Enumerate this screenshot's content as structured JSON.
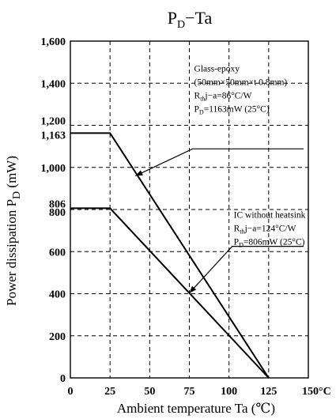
{
  "chart_data": {
    "type": "line",
    "title": {
      "main": "P",
      "subscript": "D",
      "rest": "−Ta"
    },
    "xlabel": "Ambient temperature  Ta  (℃)",
    "ylabel": {
      "main": "Power dissipation  P",
      "subscript": "D",
      "rest": "  (mW)"
    },
    "xlim": [
      0,
      150
    ],
    "ylim": [
      0,
      1600
    ],
    "grid": true,
    "grid_style": "dashed",
    "x_ticks": [
      {
        "value": 0,
        "label": "0"
      },
      {
        "value": 25,
        "label": "25"
      },
      {
        "value": 50,
        "label": "50"
      },
      {
        "value": 75,
        "label": "75"
      },
      {
        "value": 100,
        "label": "100"
      },
      {
        "value": 125,
        "label": "125"
      },
      {
        "value": 150,
        "label": "150°C"
      }
    ],
    "y_ticks": [
      {
        "value": 0,
        "label": "0"
      },
      {
        "value": 200,
        "label": "200"
      },
      {
        "value": 400,
        "label": "400"
      },
      {
        "value": 600,
        "label": "600"
      },
      {
        "value": 800,
        "label": "800"
      },
      {
        "value": 806,
        "label": "806"
      },
      {
        "value": 1000,
        "label": "1,000"
      },
      {
        "value": 1163,
        "label": "1,163"
      },
      {
        "value": 1200,
        "label": "1,200"
      },
      {
        "value": 1400,
        "label": "1,400"
      },
      {
        "value": 1600,
        "label": "1,600"
      }
    ],
    "series": [
      {
        "x": [
          0,
          25,
          125
        ],
        "y": [
          1163,
          1163,
          0
        ]
      },
      {
        "x": [
          0,
          25,
          125
        ],
        "y": [
          806,
          806,
          0
        ]
      }
    ],
    "annotations": [
      {
        "lines": [
          {
            "text": "Glass-epoxy"
          },
          {
            "text": "(50mm×50mm×t 0.8mm)"
          },
          {
            "main": "R",
            "subscript": "th",
            "rest": "j−a=86°C/W"
          },
          {
            "main": "P",
            "subscript": "D",
            "rest": "=1163mW  (25°C)"
          }
        ],
        "text_at": [
          78,
          1455
        ],
        "underline_to_x": 147,
        "underline_y": 1088,
        "arrow_target": [
          41,
          960
        ]
      },
      {
        "lines": [
          {
            "text": "IC without heatsink"
          },
          {
            "main": "R",
            "subscript": "th",
            "rest": "j−a=124°C/W"
          },
          {
            "main": "P",
            "subscript": "D",
            "rest": "=806mW  (25°C)"
          }
        ],
        "text_at": [
          103,
          760
        ],
        "underline_to_x": 147,
        "underline_y": 625,
        "arrow_target": [
          75,
          403
        ]
      }
    ]
  }
}
